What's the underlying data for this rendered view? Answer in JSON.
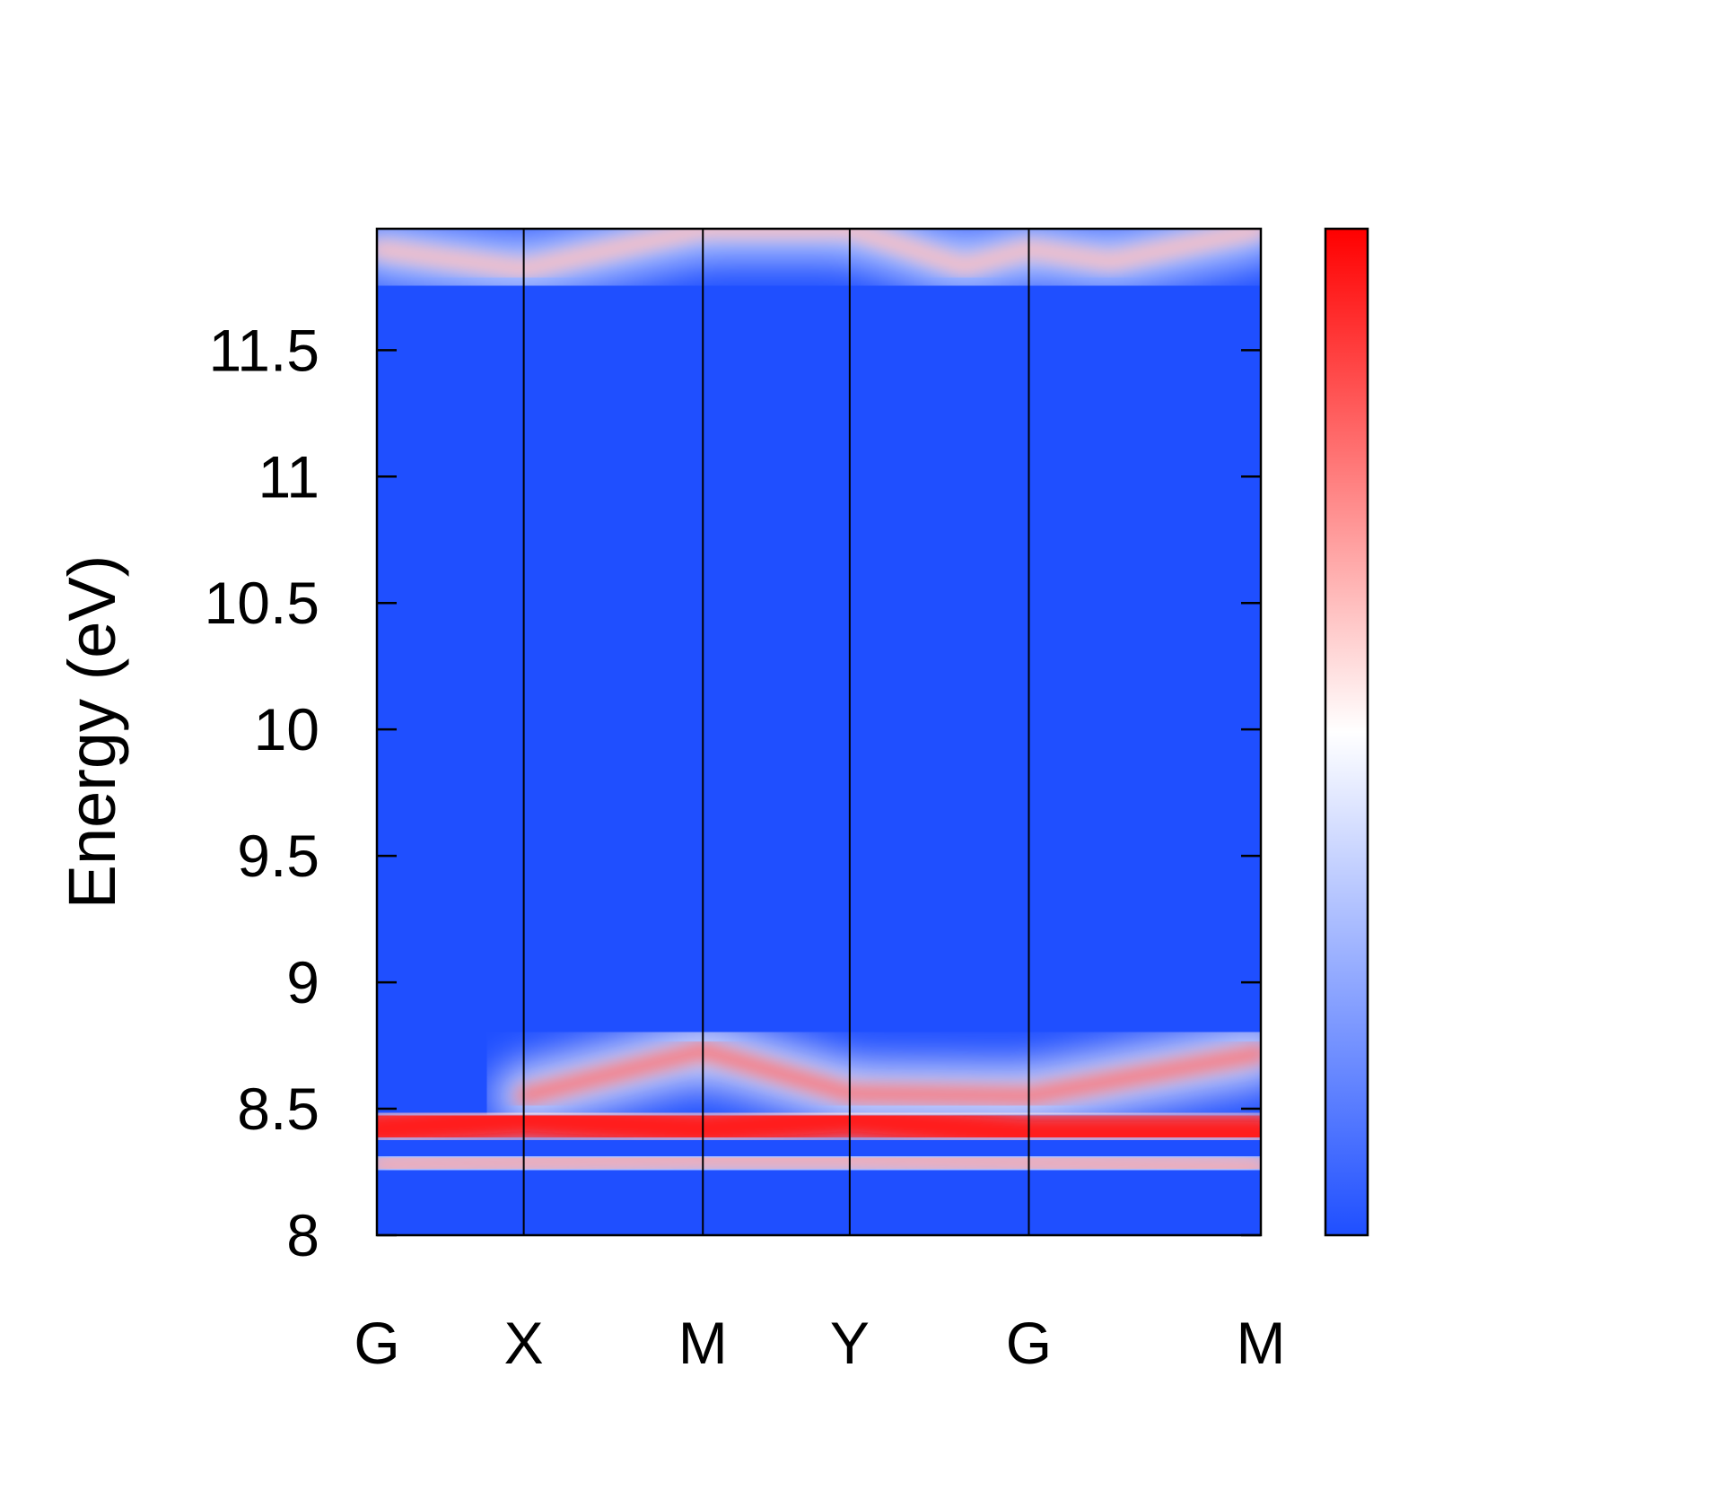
{
  "chart_data": {
    "type": "heatmap",
    "title": "",
    "ylabel": "Energy (eV)",
    "xlabel": "",
    "ylim": [
      8.0,
      11.98
    ],
    "y_ticks": [
      "8",
      "8.5",
      "9",
      "9.5",
      "10",
      "10.5",
      "11",
      "11.5"
    ],
    "k_points": [
      {
        "label": "G",
        "k": 0.0
      },
      {
        "label": "X",
        "k": 1.0
      },
      {
        "label": "M",
        "k": 2.22
      },
      {
        "label": "Y",
        "k": 3.22
      },
      {
        "label": "G",
        "k": 4.44
      },
      {
        "label": "M",
        "k": 6.02
      }
    ],
    "colormap": [
      "#1f4fff",
      "#ffffff",
      "#ff0000"
    ],
    "colorbar": {
      "ticks": []
    },
    "features": [
      {
        "description_band": "bright band",
        "path": [
          [
            0.0,
            8.42
          ],
          [
            1.0,
            8.46
          ],
          [
            2.22,
            8.42
          ],
          [
            3.22,
            8.46
          ],
          [
            4.44,
            8.4
          ],
          [
            6.02,
            8.4
          ]
        ],
        "intensity": 0.9
      },
      {
        "description_band": "upper arc",
        "path": [
          [
            1.0,
            8.55
          ],
          [
            2.22,
            8.73
          ],
          [
            3.22,
            8.56
          ],
          [
            4.44,
            8.55
          ],
          [
            6.02,
            8.72
          ]
        ],
        "intensity": 0.55
      },
      {
        "description_band": "lower edge",
        "path": [
          [
            0.0,
            8.28
          ],
          [
            2.22,
            8.3
          ],
          [
            3.22,
            8.3
          ],
          [
            6.02,
            8.27
          ]
        ],
        "intensity": 0.35
      },
      {
        "description_band": "top feature",
        "path": [
          [
            0.0,
            11.9
          ],
          [
            1.0,
            11.82
          ],
          [
            2.22,
            11.98
          ],
          [
            3.22,
            11.98
          ],
          [
            4.0,
            11.83
          ],
          [
            4.44,
            11.9
          ],
          [
            5.0,
            11.85
          ],
          [
            6.02,
            11.98
          ]
        ],
        "intensity": 0.25
      }
    ]
  }
}
